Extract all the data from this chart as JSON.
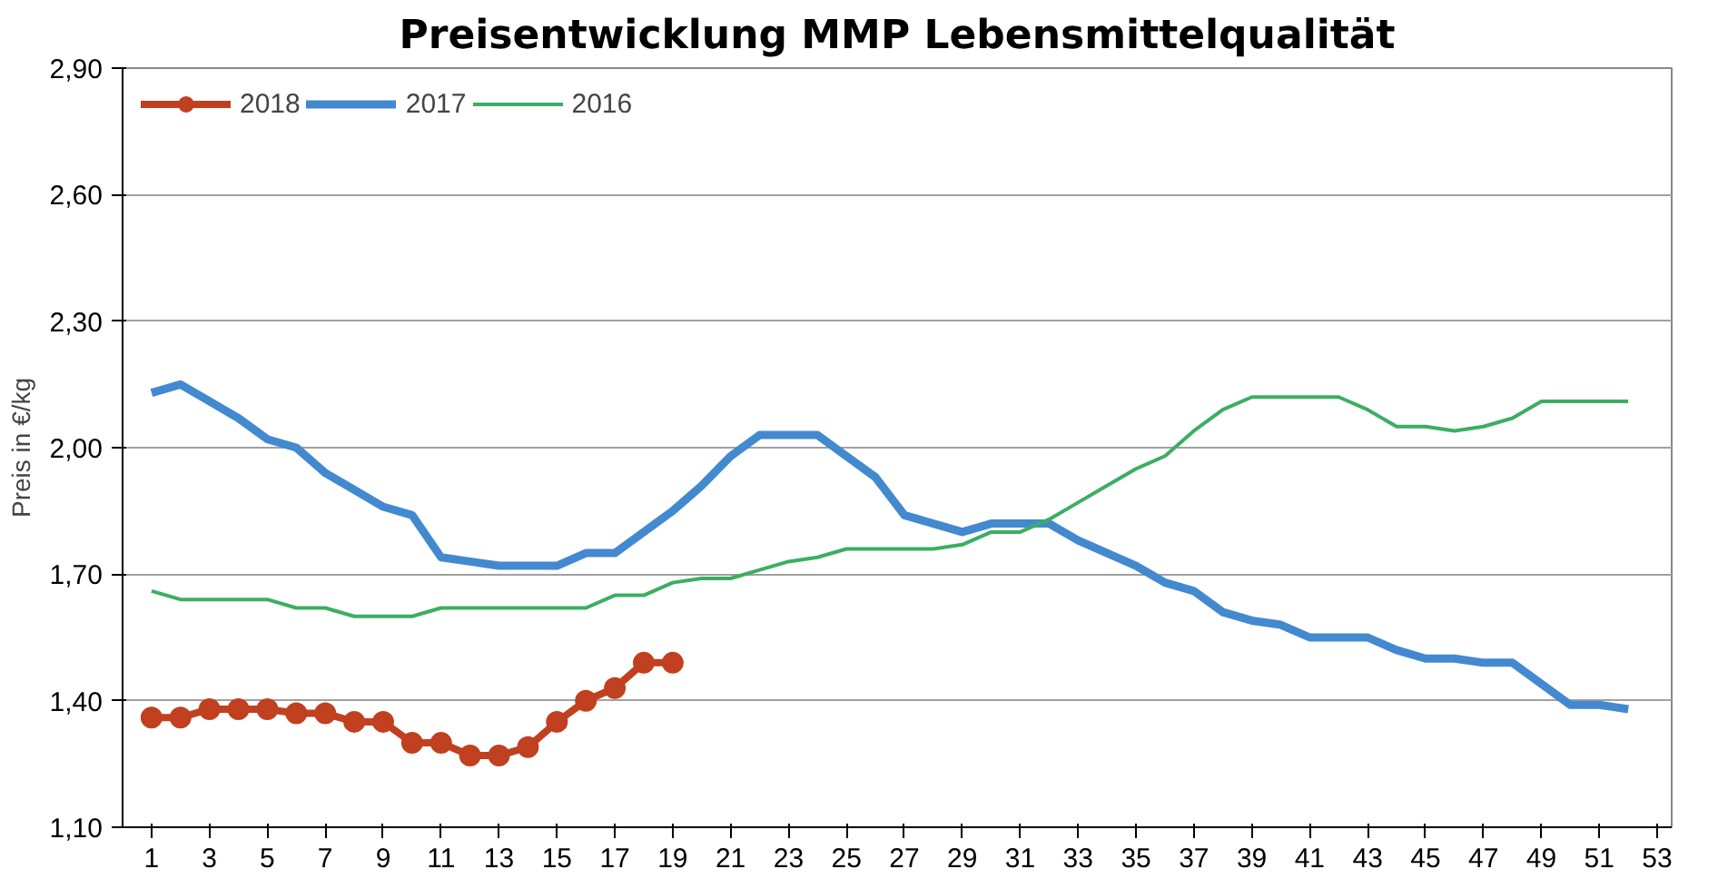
{
  "chart_data": {
    "type": "line",
    "title": "Preisentwicklung MMP Lebensmittelqualität",
    "ylabel": "Preis in €/kg",
    "xlim": [
      0,
      53.5
    ],
    "xticks": [
      1,
      3,
      5,
      7,
      9,
      11,
      13,
      15,
      17,
      19,
      21,
      23,
      25,
      27,
      29,
      31,
      33,
      35,
      37,
      39,
      41,
      43,
      45,
      47,
      49,
      51,
      53
    ],
    "ylim": [
      1.1,
      2.9
    ],
    "yticks": [
      {
        "value": 1.1,
        "label": "1,10"
      },
      {
        "value": 1.4,
        "label": "1,40"
      },
      {
        "value": 1.7,
        "label": "1,70"
      },
      {
        "value": 2.0,
        "label": "2,00"
      },
      {
        "value": 2.3,
        "label": "2,30"
      },
      {
        "value": 2.6,
        "label": "2,60"
      },
      {
        "value": 2.9,
        "label": "2,90"
      }
    ],
    "grid": "y",
    "legend": "top left",
    "series": [
      {
        "name": "2018",
        "color": "#c0401f",
        "marker": "circle",
        "x": [
          1,
          2,
          3,
          4,
          5,
          6,
          7,
          8,
          9,
          10,
          11,
          12,
          13,
          14,
          15,
          16,
          17,
          18,
          19
        ],
        "values": [
          1.36,
          1.36,
          1.38,
          1.38,
          1.38,
          1.37,
          1.37,
          1.35,
          1.35,
          1.3,
          1.3,
          1.27,
          1.27,
          1.29,
          1.35,
          1.4,
          1.43,
          1.49,
          1.49
        ]
      },
      {
        "name": "2017",
        "color": "#4389d0",
        "x": [
          1,
          2,
          3,
          4,
          5,
          6,
          7,
          8,
          9,
          10,
          11,
          12,
          13,
          14,
          15,
          16,
          17,
          18,
          19,
          20,
          21,
          22,
          23,
          24,
          25,
          26,
          27,
          28,
          29,
          30,
          31,
          32,
          33,
          34,
          35,
          36,
          37,
          38,
          39,
          40,
          41,
          42,
          43,
          44,
          45,
          46,
          47,
          48,
          49,
          50,
          51,
          52
        ],
        "values": [
          2.13,
          2.15,
          2.11,
          2.07,
          2.02,
          2.0,
          1.94,
          1.9,
          1.86,
          1.84,
          1.74,
          1.73,
          1.72,
          1.72,
          1.72,
          1.75,
          1.75,
          1.8,
          1.85,
          1.91,
          1.98,
          2.03,
          2.03,
          2.03,
          1.98,
          1.93,
          1.84,
          1.82,
          1.8,
          1.82,
          1.82,
          1.82,
          1.78,
          1.75,
          1.72,
          1.68,
          1.66,
          1.61,
          1.59,
          1.58,
          1.55,
          1.55,
          1.55,
          1.52,
          1.5,
          1.5,
          1.49,
          1.49,
          1.44,
          1.39,
          1.39,
          1.38
        ]
      },
      {
        "name": "2016",
        "color": "#3cae63",
        "x": [
          1,
          2,
          3,
          4,
          5,
          6,
          7,
          8,
          9,
          10,
          11,
          12,
          13,
          14,
          15,
          16,
          17,
          18,
          19,
          20,
          21,
          22,
          23,
          24,
          25,
          26,
          27,
          28,
          29,
          30,
          31,
          32,
          33,
          34,
          35,
          36,
          37,
          38,
          39,
          40,
          41,
          42,
          43,
          44,
          45,
          46,
          47,
          48,
          49,
          50,
          51,
          52
        ],
        "values": [
          1.66,
          1.64,
          1.64,
          1.64,
          1.64,
          1.62,
          1.62,
          1.6,
          1.6,
          1.6,
          1.62,
          1.62,
          1.62,
          1.62,
          1.62,
          1.62,
          1.65,
          1.65,
          1.68,
          1.69,
          1.69,
          1.71,
          1.73,
          1.74,
          1.76,
          1.76,
          1.76,
          1.76,
          1.77,
          1.8,
          1.8,
          1.83,
          1.87,
          1.91,
          1.95,
          1.98,
          2.04,
          2.09,
          2.12,
          2.12,
          2.12,
          2.12,
          2.09,
          2.05,
          2.05,
          2.04,
          2.05,
          2.07,
          2.11,
          2.11,
          2.11,
          2.11
        ]
      }
    ]
  }
}
